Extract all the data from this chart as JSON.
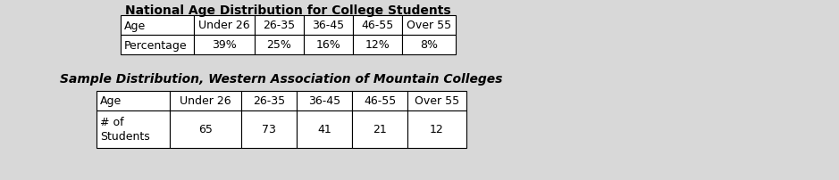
{
  "table1_title": "National Age Distribution for College Students",
  "table1_headers": [
    "Age",
    "Under 26",
    "26-35",
    "36-45",
    "46-55",
    "Over 55"
  ],
  "table1_row_label": "Percentage",
  "table1_values": [
    "39%",
    "25%",
    "16%",
    "12%",
    "8%"
  ],
  "table2_title": "Sample Distribution, Western Association of Mountain Colleges",
  "table2_headers": [
    "Age",
    "Under 26",
    "26-35",
    "36-45",
    "46-55",
    "Over 55"
  ],
  "table2_row_label": "# of\nStudents",
  "table2_values": [
    "65",
    "73",
    "41",
    "21",
    "12"
  ],
  "bg_color": "#d8d8d8",
  "cell_bg": "#ffffff",
  "edge_color": "#000000",
  "font_size": 9,
  "title1_fontsize": 10,
  "title2_fontsize": 10
}
